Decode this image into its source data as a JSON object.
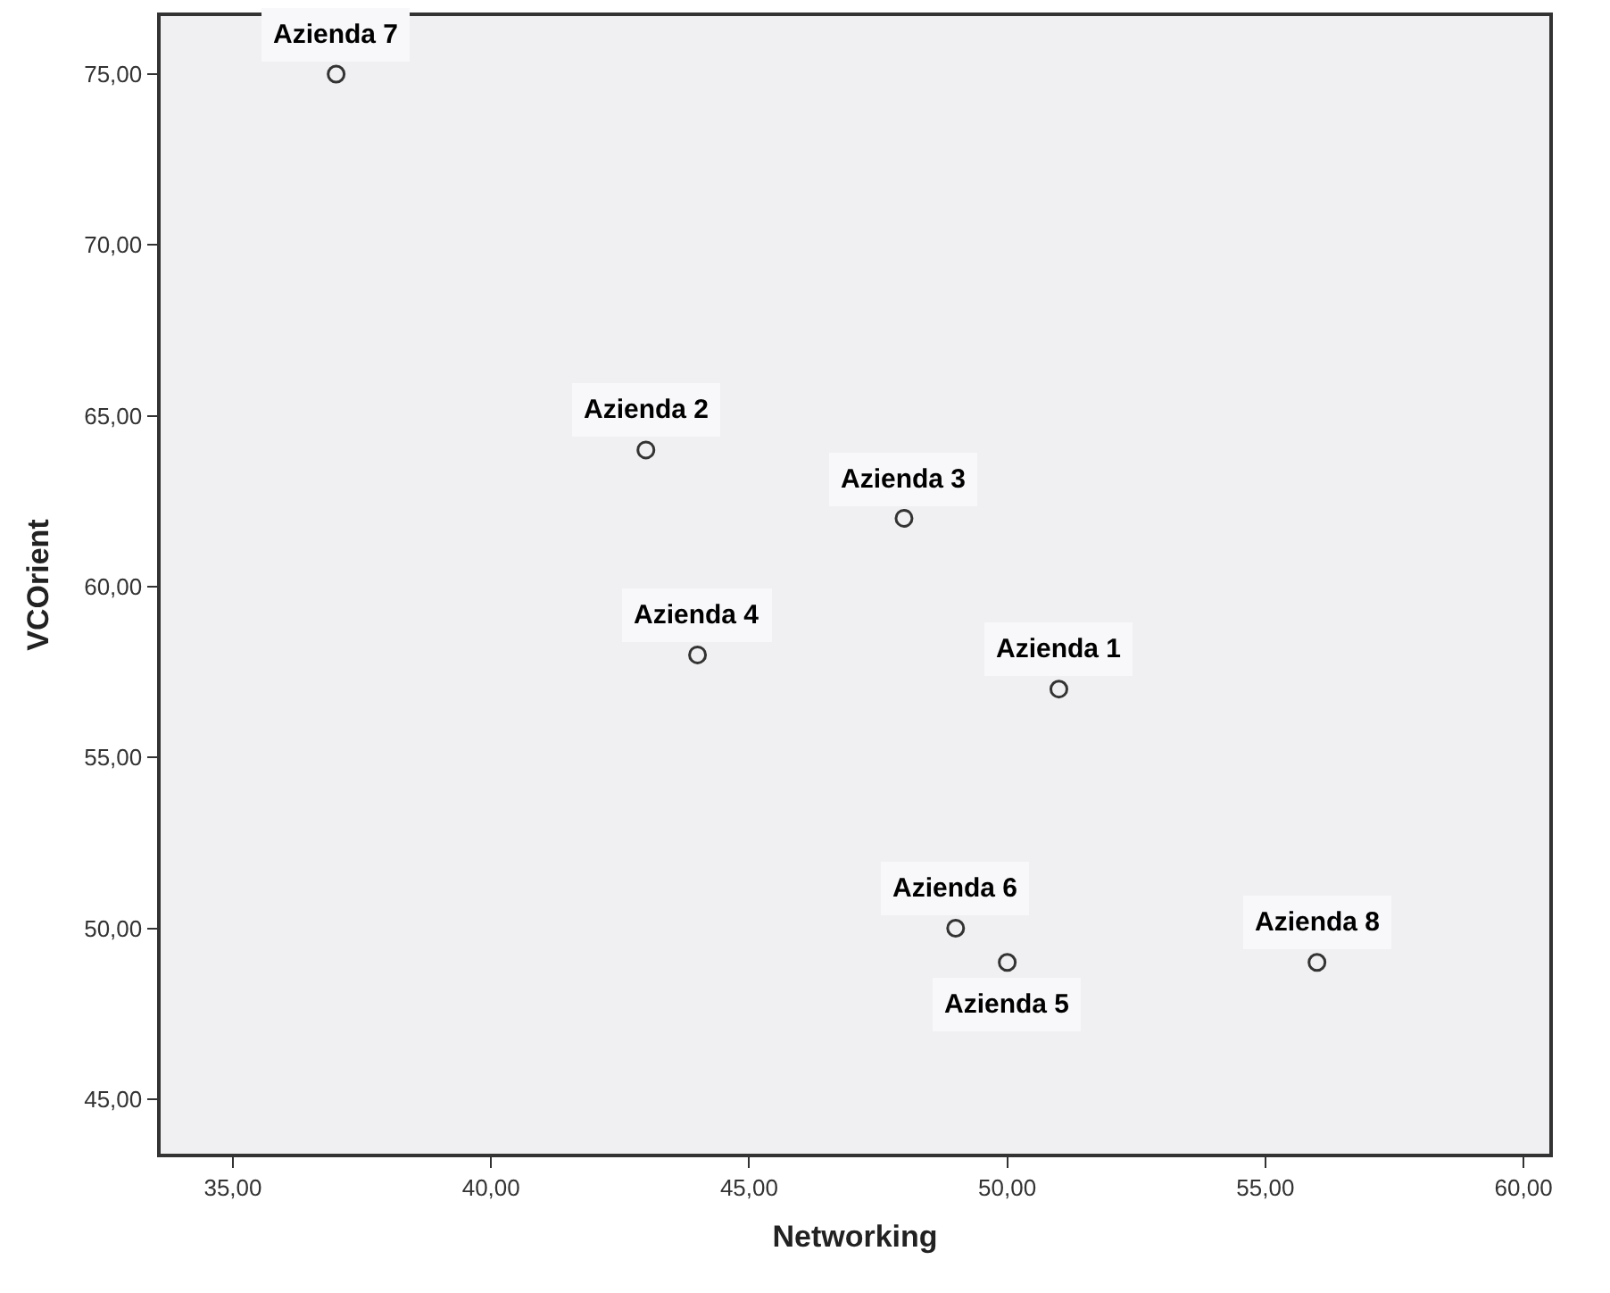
{
  "chart_data": {
    "type": "scatter",
    "xlabel": "Networking",
    "ylabel": "VCOrient",
    "x": [
      37,
      43,
      48,
      44,
      51,
      49,
      50,
      56
    ],
    "values": [
      75,
      64,
      62,
      58,
      57,
      50,
      49,
      49
    ],
    "color": "#333333",
    "marker": "circle",
    "grid": false,
    "xlim": [
      33.6,
      60.5
    ],
    "ylim": [
      43.4,
      76.7
    ],
    "xticks": [
      {
        "value": 35,
        "label": "35,00"
      },
      {
        "value": 40,
        "label": "40,00"
      },
      {
        "value": 45,
        "label": "45,00"
      },
      {
        "value": 50,
        "label": "50,00"
      },
      {
        "value": 55,
        "label": "55,00"
      },
      {
        "value": 60,
        "label": "60,00"
      }
    ],
    "yticks": [
      {
        "value": 45,
        "label": "45,00"
      },
      {
        "value": 50,
        "label": "50,00"
      },
      {
        "value": 55,
        "label": "55,00"
      },
      {
        "value": 60,
        "label": "60,00"
      },
      {
        "value": 65,
        "label": "65,00"
      },
      {
        "value": 70,
        "label": "70,00"
      },
      {
        "value": 75,
        "label": "75,00"
      }
    ],
    "annotations": [
      {
        "text": "Azienda 7",
        "x": 37,
        "y": 75
      },
      {
        "text": "Azienda 2",
        "x": 43,
        "y": 64
      },
      {
        "text": "Azienda 3",
        "x": 48,
        "y": 62
      },
      {
        "text": "Azienda 4",
        "x": 44,
        "y": 58
      },
      {
        "text": "Azienda 1",
        "x": 51,
        "y": 57
      },
      {
        "text": "Azienda 6",
        "x": 49,
        "y": 50
      },
      {
        "text": "Azienda 5",
        "x": 50,
        "y": 49
      },
      {
        "text": "Azienda 8",
        "x": 56,
        "y": 49
      }
    ]
  }
}
